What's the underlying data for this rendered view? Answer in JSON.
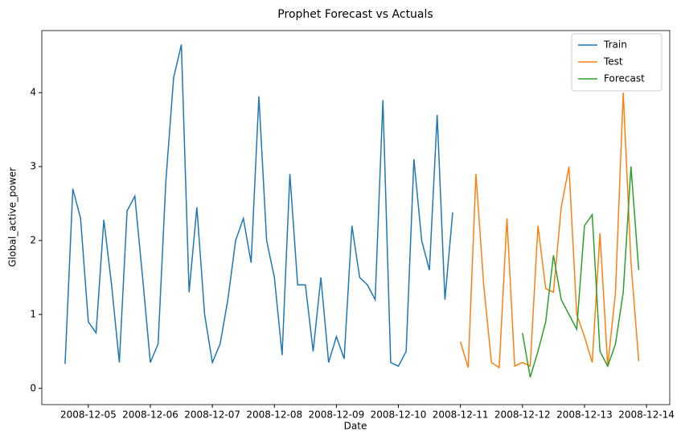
{
  "chart_data": {
    "type": "line",
    "title": "Prophet Forecast vs Actuals",
    "x_label": "Date",
    "y_label": "Global_active_power",
    "xlim": [
      "2008-12-04 06:00",
      "2008-12-14 09:00"
    ],
    "xticks": [
      "2008-12-05",
      "2008-12-06",
      "2008-12-07",
      "2008-12-08",
      "2008-12-09",
      "2008-12-10",
      "2008-12-11",
      "2008-12-12",
      "2008-12-13",
      "2008-12-14"
    ],
    "ylim": [
      -0.22,
      4.84
    ],
    "yticks": [
      0,
      1,
      2,
      3,
      4
    ],
    "grid": false,
    "legend": "upper right",
    "series": [
      {
        "name": "Train",
        "color": "#1f77b4",
        "x": [
          "2008-12-04 15:00",
          "2008-12-04 18:00",
          "2008-12-04 21:00",
          "2008-12-05 00:00",
          "2008-12-05 03:00",
          "2008-12-05 06:00",
          "2008-12-05 09:00",
          "2008-12-05 12:00",
          "2008-12-05 15:00",
          "2008-12-05 18:00",
          "2008-12-05 21:00",
          "2008-12-06 00:00",
          "2008-12-06 03:00",
          "2008-12-06 06:00",
          "2008-12-06 09:00",
          "2008-12-06 12:00",
          "2008-12-06 15:00",
          "2008-12-06 18:00",
          "2008-12-06 21:00",
          "2008-12-07 00:00",
          "2008-12-07 03:00",
          "2008-12-07 06:00",
          "2008-12-07 09:00",
          "2008-12-07 12:00",
          "2008-12-07 15:00",
          "2008-12-07 18:00",
          "2008-12-07 21:00",
          "2008-12-08 00:00",
          "2008-12-08 03:00",
          "2008-12-08 06:00",
          "2008-12-08 09:00",
          "2008-12-08 12:00",
          "2008-12-08 15:00",
          "2008-12-08 18:00",
          "2008-12-08 21:00",
          "2008-12-09 00:00",
          "2008-12-09 03:00",
          "2008-12-09 06:00",
          "2008-12-09 09:00",
          "2008-12-09 12:00",
          "2008-12-09 15:00",
          "2008-12-09 18:00",
          "2008-12-09 21:00",
          "2008-12-10 00:00",
          "2008-12-10 03:00",
          "2008-12-10 06:00",
          "2008-12-10 09:00",
          "2008-12-10 12:00",
          "2008-12-10 15:00",
          "2008-12-10 18:00",
          "2008-12-10 21:00"
        ],
        "values": [
          0.33,
          2.7,
          2.3,
          0.9,
          0.75,
          2.28,
          1.4,
          0.35,
          2.4,
          2.6,
          1.5,
          0.35,
          0.6,
          2.8,
          4.2,
          4.65,
          1.3,
          2.45,
          1.0,
          0.35,
          0.6,
          1.2,
          2.0,
          2.3,
          1.7,
          3.95,
          2.0,
          1.5,
          0.45,
          2.9,
          1.4,
          1.4,
          0.5,
          1.5,
          0.35,
          0.7,
          0.4,
          2.2,
          1.5,
          1.4,
          1.2,
          3.9,
          0.35,
          0.3,
          0.5,
          3.1,
          2.0,
          1.6,
          3.7,
          1.2,
          2.38
        ]
      },
      {
        "name": "Test",
        "color": "#ff7f0e",
        "x": [
          "2008-12-11 00:00",
          "2008-12-11 03:00",
          "2008-12-11 06:00",
          "2008-12-11 09:00",
          "2008-12-11 12:00",
          "2008-12-11 15:00",
          "2008-12-11 18:00",
          "2008-12-11 21:00",
          "2008-12-12 00:00",
          "2008-12-12 03:00",
          "2008-12-12 06:00",
          "2008-12-12 09:00",
          "2008-12-12 12:00",
          "2008-12-12 15:00",
          "2008-12-12 18:00",
          "2008-12-12 21:00",
          "2008-12-13 00:00",
          "2008-12-13 03:00",
          "2008-12-13 06:00",
          "2008-12-13 09:00",
          "2008-12-13 12:00",
          "2008-12-13 15:00",
          "2008-12-13 18:00",
          "2008-12-13 21:00"
        ],
        "values": [
          0.63,
          0.28,
          2.9,
          1.4,
          0.35,
          0.28,
          2.3,
          0.3,
          0.35,
          0.3,
          2.2,
          1.35,
          1.3,
          2.45,
          3.0,
          1.0,
          0.7,
          0.35,
          2.1,
          0.3,
          1.3,
          4.0,
          1.7,
          0.37
        ]
      },
      {
        "name": "Forecast",
        "color": "#2ca02c",
        "x": [
          "2008-12-12 00:00",
          "2008-12-12 03:00",
          "2008-12-12 06:00",
          "2008-12-12 09:00",
          "2008-12-12 12:00",
          "2008-12-12 15:00",
          "2008-12-12 18:00",
          "2008-12-12 21:00",
          "2008-12-13 00:00",
          "2008-12-13 03:00",
          "2008-12-13 06:00",
          "2008-12-13 09:00",
          "2008-12-13 12:00",
          "2008-12-13 15:00",
          "2008-12-13 18:00",
          "2008-12-13 21:00"
        ],
        "values": [
          0.75,
          0.15,
          0.5,
          0.9,
          1.8,
          1.2,
          1.0,
          0.8,
          2.2,
          2.35,
          0.5,
          0.3,
          0.6,
          1.3,
          3.0,
          1.6
        ]
      }
    ]
  }
}
